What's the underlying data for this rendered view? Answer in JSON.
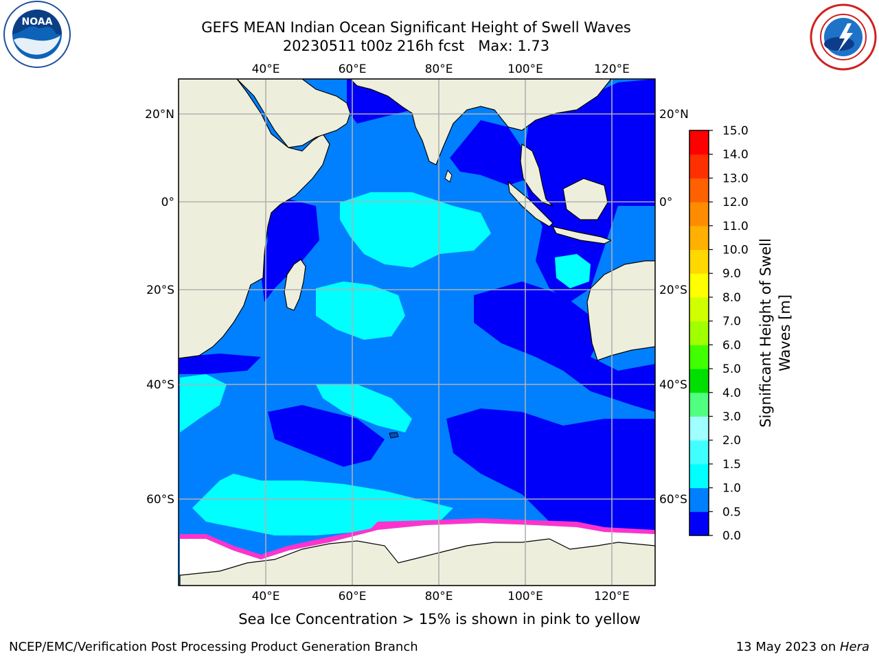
{
  "title": {
    "line1": "GEFS MEAN Indian Ocean Significant Height of Swell Waves",
    "line2": "20230511 t00z 216h fcst   Max: 1.73"
  },
  "map": {
    "lon_ticks": [
      "40°E",
      "60°E",
      "80°E",
      "100°E",
      "120°E"
    ],
    "lat_ticks_left": [
      "20°N",
      "0°",
      "20°S",
      "40°S",
      "60°S"
    ],
    "lat_ticks_right": [
      "20°N",
      "0°",
      "20°S",
      "40°S",
      "60°S"
    ]
  },
  "colorbar": {
    "label_line1": "Significant Height of Swell",
    "label_line2": "Waves [m]",
    "ticks": [
      "0.0",
      "0.5",
      "1.0",
      "1.5",
      "2.0",
      "3.0",
      "4.0",
      "5.0",
      "6.0",
      "7.0",
      "8.0",
      "9.0",
      "10.0",
      "11.0",
      "12.0",
      "13.0",
      "14.0",
      "15.0"
    ],
    "colors": [
      "#0000fa",
      "#0080ff",
      "#00ffff",
      "#40ffff",
      "#a0ffff",
      "#50ff80",
      "#00e000",
      "#40ff00",
      "#a0ff00",
      "#d0ff00",
      "#ffff00",
      "#ffd800",
      "#ffb000",
      "#ff8c00",
      "#ff6000",
      "#ff3000",
      "#ff0000"
    ]
  },
  "caption": "Sea Ice Concentration > 15% is shown in pink to yellow",
  "footer": {
    "left": "NCEP/EMC/Verification Post Processing Product Generation Branch",
    "right_prefix": "13 May 2023 on ",
    "right_host": "Hera"
  },
  "logos": {
    "noaa_text": "NOAA",
    "nws_text": "NATIONAL WEATHER SERVICE"
  }
}
